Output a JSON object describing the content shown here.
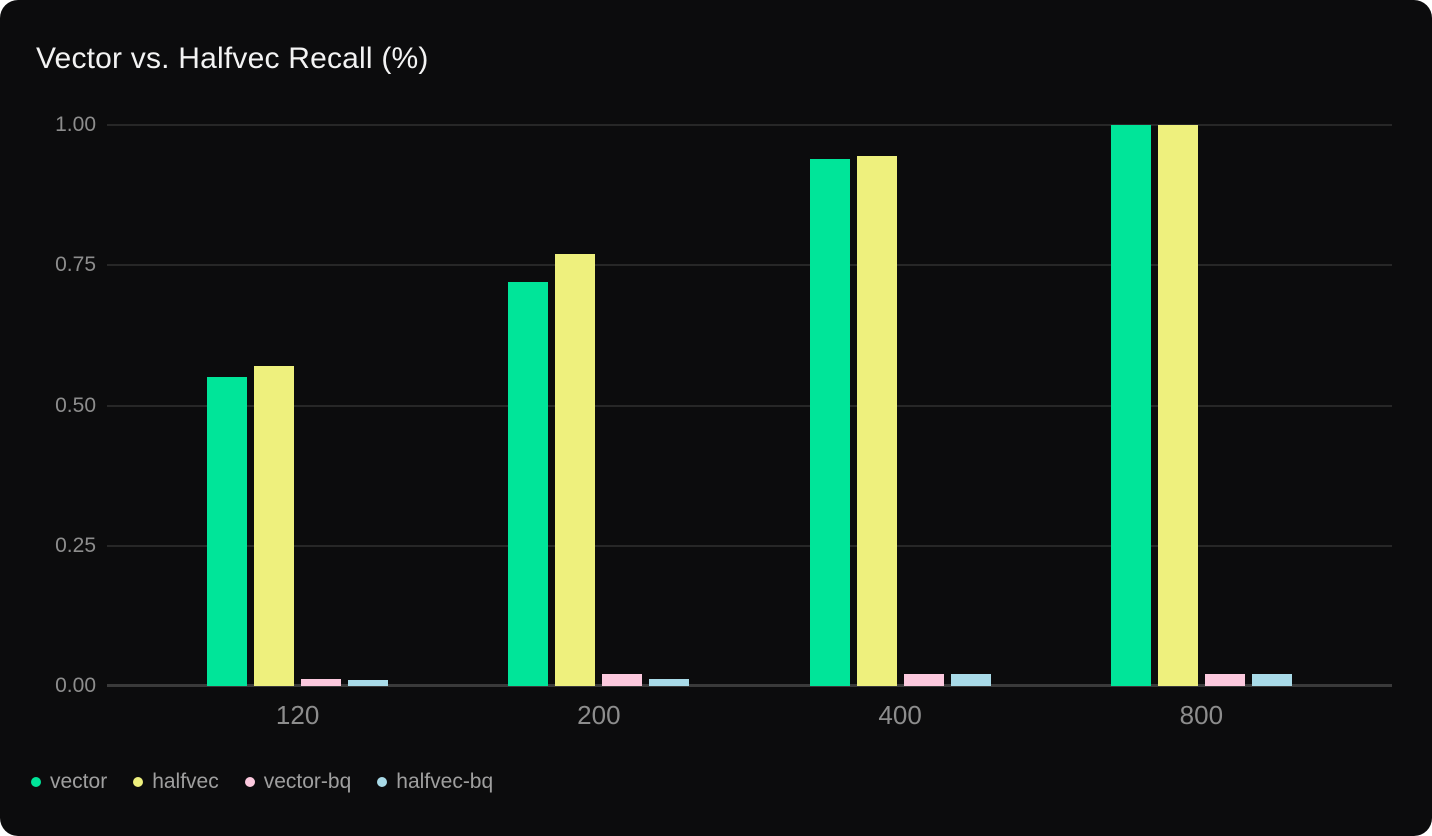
{
  "chart_data": {
    "type": "bar",
    "title": "Vector vs. Halfvec Recall (%)",
    "xlabel": "",
    "ylabel": "",
    "categories": [
      "120",
      "200",
      "400",
      "800"
    ],
    "series": [
      {
        "name": "vector",
        "color": "#00e599",
        "values": [
          0.55,
          0.72,
          0.94,
          1.0
        ]
      },
      {
        "name": "halfvec",
        "color": "#eef07d",
        "values": [
          0.57,
          0.77,
          0.945,
          1.0
        ]
      },
      {
        "name": "vector-bq",
        "color": "#fcc9de",
        "values": [
          0.013,
          0.022,
          0.021,
          0.021
        ]
      },
      {
        "name": "halfvec-bq",
        "color": "#a9dbe8",
        "values": [
          0.011,
          0.013,
          0.021,
          0.021
        ]
      }
    ],
    "y_ticks": [
      {
        "value": 0.0,
        "label": "0.00"
      },
      {
        "value": 0.25,
        "label": "0.25"
      },
      {
        "value": 0.5,
        "label": "0.50"
      },
      {
        "value": 0.75,
        "label": "0.75"
      },
      {
        "value": 1.0,
        "label": "1.00"
      }
    ],
    "ylim": [
      0,
      1
    ],
    "grid": true,
    "legend_position": "bottom-left"
  },
  "colors": {
    "page_bg": "#ffffff",
    "card_bg": "#0c0c0d",
    "title": "#f3f3f3",
    "axis_label": "#8d8d8d",
    "legend_label": "#9f9f9f",
    "gridline": "#272727",
    "baseline": "#3a3a3a"
  }
}
